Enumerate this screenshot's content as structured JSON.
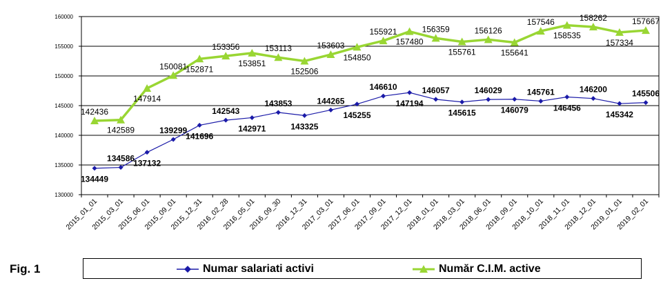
{
  "figure": {
    "label": "Fig. 1"
  },
  "chart_data": {
    "type": "line",
    "categories": [
      "2015_01_01",
      "2015_03_01",
      "2015_06_01",
      "2015_09_01",
      "2015_12_31",
      "2016_02_28",
      "2016_05_01",
      "2016_09_30",
      "2016_12_31",
      "2017_03_01",
      "2017_06_01",
      "2017_09_01",
      "2017_12_01",
      "2018_01_01",
      "2018_03_01",
      "2018_06_01",
      "2018_09_01",
      "2018_10_01",
      "2018_11_01",
      "2018_12_01",
      "2019_01_01",
      "2019_02_01"
    ],
    "yticks": [
      "130000",
      "135000",
      "140000",
      "145000",
      "150000",
      "155000",
      "160000"
    ],
    "ylim": [
      130000,
      160000
    ],
    "grid": "horizontal",
    "legend_placement": "bottom",
    "series": [
      {
        "name": "Numar salariati activi",
        "color": "#1a1aa8",
        "marker": "diamond",
        "values": [
          134449,
          134586,
          137132,
          139299,
          141696,
          142543,
          142971,
          143853,
          143325,
          144265,
          145255,
          146610,
          147194,
          146057,
          145615,
          146029,
          146079,
          145761,
          146456,
          146200,
          145342,
          145506
        ],
        "labels": [
          "134449",
          "134586",
          "137132",
          "139299",
          "141696",
          "142543",
          "142971",
          "143853",
          "143325",
          "144265",
          "145255",
          "146610",
          "147194",
          "146057",
          "145615",
          "146029",
          "146079",
          "145761",
          "146456",
          "146200",
          "145342",
          "145506"
        ]
      },
      {
        "name": "Număr C.I.M. active",
        "color": "#99d633",
        "marker": "triangle",
        "values": [
          142436,
          142589,
          147914,
          150081,
          152871,
          153356,
          153851,
          153113,
          152506,
          153603,
          154850,
          155921,
          157480,
          156359,
          155761,
          156126,
          155641,
          157546,
          158535,
          158262,
          157334,
          157667
        ],
        "labels": [
          "142436",
          "142589",
          "147914",
          "150081",
          "152871",
          "153356",
          "153851",
          "153113",
          "152506",
          "153603",
          "154850",
          "155921",
          "157480",
          "156359",
          "155761",
          "156126",
          "155641",
          "157546",
          "158535",
          "158262",
          "157334",
          "157667"
        ]
      }
    ]
  }
}
